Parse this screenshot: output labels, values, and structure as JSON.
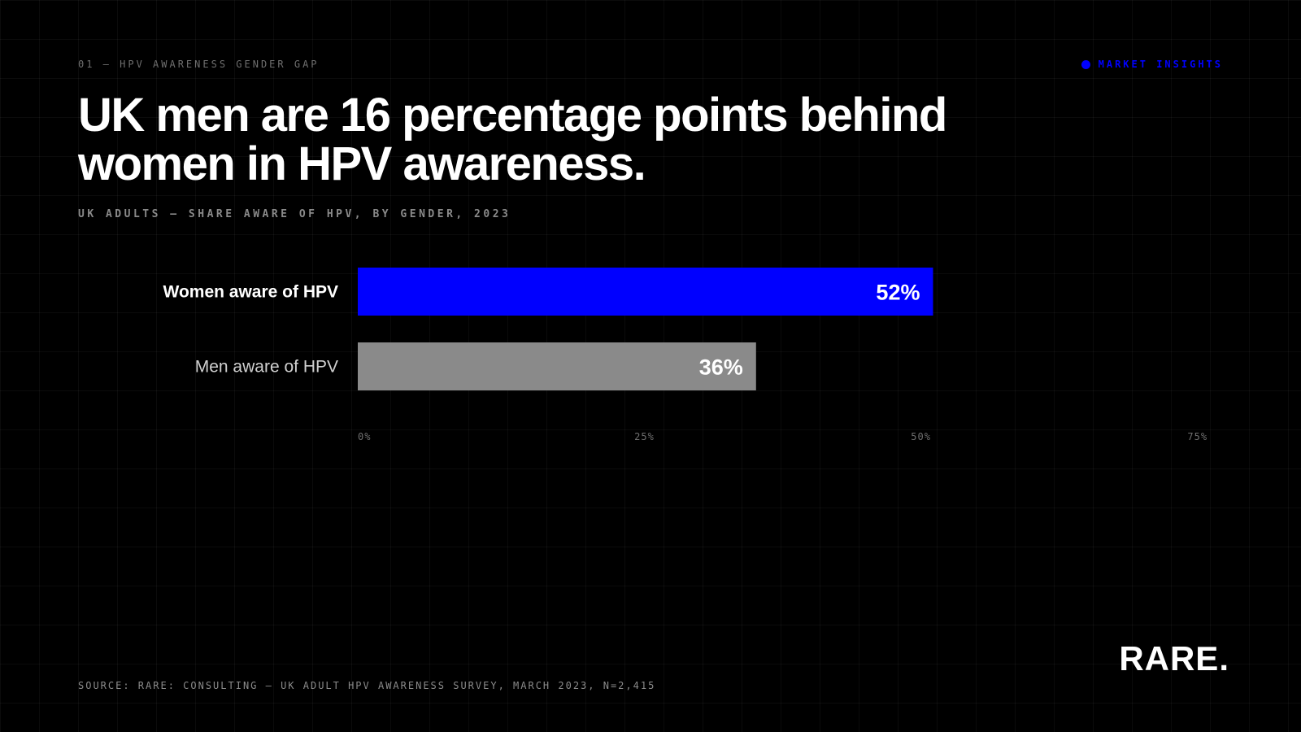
{
  "eyebrow": "01 — HPV AWARENESS GENDER GAP",
  "tag": {
    "label": "MARKET INSIGHTS"
  },
  "headline": "UK men are 16 percentage points behind women in HPV awareness.",
  "subtitle": "UK ADULTS — SHARE AWARE OF HPV, BY GENDER, 2023",
  "source": "SOURCE: RARE: CONSULTING — UK ADULT HPV AWARENESS SURVEY, MARCH 2023, N=2,415",
  "logo": "RARE.",
  "colors": {
    "accent": "#0000ff",
    "secondary_bar": "#8a8a8a",
    "background": "#000000",
    "text": "#ffffff",
    "muted_text": "#6f6f6f"
  },
  "chart_data": {
    "type": "bar",
    "orientation": "horizontal",
    "categories": [
      "Women aware of HPV",
      "Men aware of HPV"
    ],
    "values": [
      52,
      36
    ],
    "value_labels": [
      "52%",
      "36%"
    ],
    "xlim": [
      0,
      76
    ],
    "xticks": [
      0,
      25,
      50,
      75
    ],
    "xtick_labels": [
      "0%",
      "25%",
      "50%",
      "75%"
    ],
    "bar_colors": [
      "#0000ff",
      "#8a8a8a"
    ],
    "label_colors": [
      "#ffffff",
      "#d0d0d0"
    ],
    "label_weights": [
      "bold",
      "normal"
    ],
    "grid": false,
    "legend": "none"
  }
}
